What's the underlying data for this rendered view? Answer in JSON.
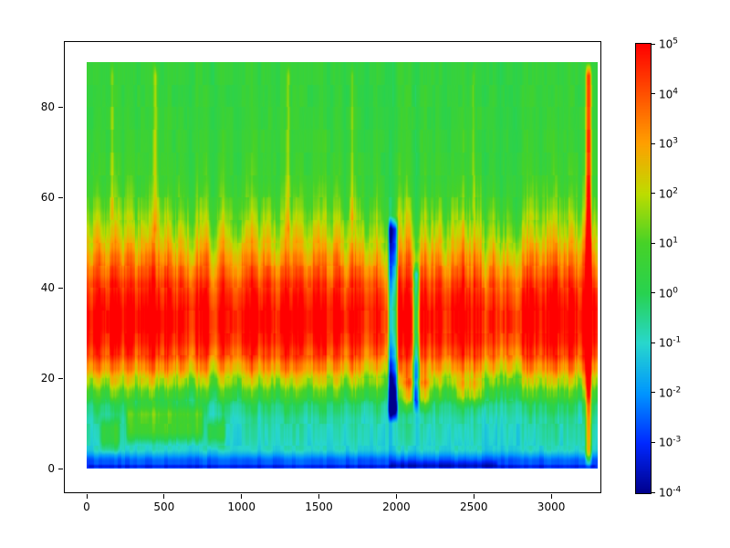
{
  "figure": {
    "background": "#ffffff",
    "frame_color": "#000000"
  },
  "chart_data": {
    "type": "heatmap",
    "title": "",
    "xlabel": "",
    "ylabel": "",
    "x_axis": {
      "range": [
        0,
        3300
      ],
      "ticks": [
        0,
        500,
        1000,
        1500,
        2000,
        2500,
        3000
      ]
    },
    "y_axis": {
      "range": [
        0,
        90
      ],
      "ticks": [
        0,
        20,
        40,
        60,
        80
      ]
    },
    "colorbar": {
      "scale": "log10",
      "min_exp": -4,
      "max_exp": 5,
      "tick_base": "10",
      "tick_exponents": [
        5,
        4,
        3,
        2,
        1,
        0,
        -1,
        -2,
        -3,
        -4
      ],
      "stops": [
        {
          "v": -4,
          "color": "#00008c"
        },
        {
          "v": -3,
          "color": "#0028ff"
        },
        {
          "v": -2,
          "color": "#0096ff"
        },
        {
          "v": -1,
          "color": "#28d7cd"
        },
        {
          "v": 0,
          "color": "#28d250"
        },
        {
          "v": 1,
          "color": "#46d228"
        },
        {
          "v": 2,
          "color": "#bedc00"
        },
        {
          "v": 3,
          "color": "#ffa000"
        },
        {
          "v": 4,
          "color": "#ff5000"
        },
        {
          "v": 5,
          "color": "#ff0000"
        }
      ]
    },
    "grid": {
      "x_step": 50,
      "y_step": 3,
      "row_profile_log10": [
        -2.6,
        -1.1,
        -1.0,
        -0.9,
        -0.6,
        0.3,
        1.4,
        2.6,
        3.6,
        4.2,
        4.5,
        4.5,
        4.2,
        3.8,
        3.2,
        2.6,
        2.0,
        1.5,
        1.1,
        0.8,
        0.6,
        0.5,
        0.45,
        0.4,
        0.4,
        0.35,
        0.35,
        0.3,
        0.3,
        0.3
      ],
      "band_weight": [
        0.05,
        0.2,
        0.3,
        0.35,
        0.5,
        0.9,
        1.0,
        1.0,
        1.0,
        0.9,
        0.85,
        0.85,
        0.85,
        0.9,
        0.95,
        1.0,
        1.0,
        0.95,
        0.85,
        0.7,
        0.55,
        0.45,
        0.4,
        0.38,
        0.35,
        0.33,
        0.3,
        0.3,
        0.28,
        0.28
      ],
      "col_mod_log10": [
        0.3,
        0.8,
        0.2,
        1.0,
        0.4,
        0.9,
        0.1,
        0.8,
        1.2,
        0.5,
        1.0,
        0.2,
        0.7,
        -0.2,
        0.8,
        1.1,
        -0.5,
        0.9,
        0.3,
        -0.3,
        0.6,
        1.0,
        0.4,
        0.9,
        0.0,
        1.1,
        0.5,
        1.0,
        -0.2,
        0.7,
        1.0,
        0.3,
        0.8,
        0.0,
        0.9,
        0.4,
        -0.3,
        0.5,
        -0.6,
        -1.0,
        0.8,
        1.2,
        -0.8,
        0.9,
        0.2,
        0.7,
        -0.1,
        0.6,
        1.0,
        0.4,
        0.9,
        -0.4,
        0.5,
        -0.6,
        0.3,
        -0.8,
        0.6,
        1.0,
        0.2,
        0.7,
        1.1,
        0.5,
        1.0,
        0.3,
        1.3,
        0.6
      ],
      "features": [
        {
          "x": [
            1940,
            2015
          ],
          "y": [
            10,
            56
          ],
          "delta": -4.5
        },
        {
          "x": [
            2100,
            2155
          ],
          "y": [
            12,
            46
          ],
          "delta": -3.5
        },
        {
          "x": [
            2030,
            2230
          ],
          "y": [
            12,
            22
          ],
          "delta": 1.4
        },
        {
          "x": [
            2380,
            2590
          ],
          "y": [
            13,
            21
          ],
          "delta": 1.0
        },
        {
          "x": [
            3215,
            3268
          ],
          "y": [
            0,
            90
          ],
          "delta": 3.5
        },
        {
          "x": [
            425,
            468
          ],
          "y": [
            50,
            90
          ],
          "delta": 1.3
        },
        {
          "x": [
            1282,
            1322
          ],
          "y": [
            50,
            90
          ],
          "delta": 1.1
        },
        {
          "x": [
            1695,
            1735
          ],
          "y": [
            52,
            90
          ],
          "delta": 1.0
        },
        {
          "x": [
            2478,
            2512
          ],
          "y": [
            55,
            90
          ],
          "delta": 0.9
        },
        {
          "x": [
            148,
            182
          ],
          "y": [
            55,
            90
          ],
          "delta": 0.9
        },
        {
          "x": [
            250,
            760
          ],
          "y": [
            5,
            15
          ],
          "delta": 1.6
        },
        {
          "x": [
            80,
            225
          ],
          "y": [
            3,
            12
          ],
          "delta": 1.2
        },
        {
          "x": [
            775,
            905
          ],
          "y": [
            4,
            12
          ],
          "delta": 1.3
        },
        {
          "x": [
            1950,
            2660
          ],
          "y": [
            0,
            2
          ],
          "delta": -0.7
        },
        {
          "x": [
            0,
            3300
          ],
          "y": [
            0,
            1
          ],
          "delta": -0.8
        }
      ]
    }
  }
}
